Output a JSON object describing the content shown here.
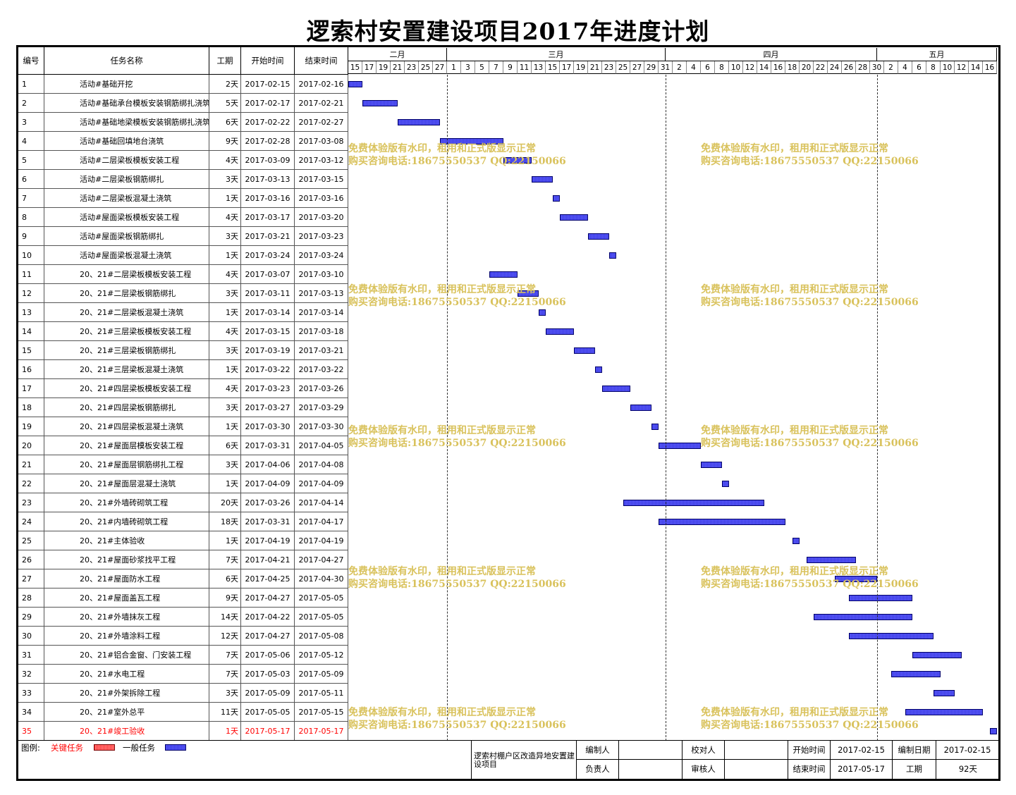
{
  "title": "逻索村安置建设项目2017年进度计划",
  "columns": {
    "id": "编号",
    "name": "任务名称",
    "duration": "工期",
    "start": "开始时间",
    "end": "结束时间"
  },
  "months": [
    {
      "label": "二月",
      "startDay": 0,
      "endDay": 14
    },
    {
      "label": "三月",
      "startDay": 14,
      "endDay": 45
    },
    {
      "label": "四月",
      "startDay": 45,
      "endDay": 75
    },
    {
      "label": "五月",
      "startDay": 75,
      "endDay": 92
    }
  ],
  "day_ticks": [
    "15",
    "17",
    "19",
    "21",
    "23",
    "25",
    "27",
    "1",
    "3",
    "5",
    "7",
    "9",
    "11",
    "13",
    "15",
    "17",
    "19",
    "21",
    "23",
    "25",
    "27",
    "29",
    "31",
    "2",
    "4",
    "6",
    "8",
    "10",
    "12",
    "14",
    "16",
    "18",
    "20",
    "22",
    "24",
    "26",
    "28",
    "30",
    "2",
    "4",
    "6",
    "8",
    "10",
    "12",
    "14",
    "16"
  ],
  "tasks": [
    {
      "id": "1",
      "name": "活动#基础开挖",
      "duration": "2天",
      "start": "2017-02-15",
      "end": "2017-02-16",
      "offset": 0,
      "days": 2,
      "critical": false
    },
    {
      "id": "2",
      "name": "活动#基础承台模板安装钢筋绑扎浇筑",
      "duration": "5天",
      "start": "2017-02-17",
      "end": "2017-02-21",
      "offset": 2,
      "days": 5,
      "critical": false
    },
    {
      "id": "3",
      "name": "活动#基础地梁模板安装钢筋绑扎浇筑",
      "duration": "6天",
      "start": "2017-02-22",
      "end": "2017-02-27",
      "offset": 7,
      "days": 6,
      "critical": false
    },
    {
      "id": "4",
      "name": "活动#基础回填地台浇筑",
      "duration": "9天",
      "start": "2017-02-28",
      "end": "2017-03-08",
      "offset": 13,
      "days": 9,
      "critical": false
    },
    {
      "id": "5",
      "name": "活动#二层梁板模板安装工程",
      "duration": "4天",
      "start": "2017-03-09",
      "end": "2017-03-12",
      "offset": 22,
      "days": 4,
      "critical": false
    },
    {
      "id": "6",
      "name": "活动#二层梁板钢筋绑扎",
      "duration": "3天",
      "start": "2017-03-13",
      "end": "2017-03-15",
      "offset": 26,
      "days": 3,
      "critical": false
    },
    {
      "id": "7",
      "name": "活动#二层梁板混凝土浇筑",
      "duration": "1天",
      "start": "2017-03-16",
      "end": "2017-03-16",
      "offset": 29,
      "days": 1,
      "critical": false
    },
    {
      "id": "8",
      "name": "活动#屋面梁板模板安装工程",
      "duration": "4天",
      "start": "2017-03-17",
      "end": "2017-03-20",
      "offset": 30,
      "days": 4,
      "critical": false
    },
    {
      "id": "9",
      "name": "活动#屋面梁板钢筋绑扎",
      "duration": "3天",
      "start": "2017-03-21",
      "end": "2017-03-23",
      "offset": 34,
      "days": 3,
      "critical": false
    },
    {
      "id": "10",
      "name": "活动#屋面梁板混凝土浇筑",
      "duration": "1天",
      "start": "2017-03-24",
      "end": "2017-03-24",
      "offset": 37,
      "days": 1,
      "critical": false
    },
    {
      "id": "11",
      "name": "20、21#二层梁板模板安装工程",
      "duration": "4天",
      "start": "2017-03-07",
      "end": "2017-03-10",
      "offset": 20,
      "days": 4,
      "critical": false
    },
    {
      "id": "12",
      "name": "20、21#二层梁板钢筋绑扎",
      "duration": "3天",
      "start": "2017-03-11",
      "end": "2017-03-13",
      "offset": 24,
      "days": 3,
      "critical": false
    },
    {
      "id": "13",
      "name": "20、21#二层梁板混凝土浇筑",
      "duration": "1天",
      "start": "2017-03-14",
      "end": "2017-03-14",
      "offset": 27,
      "days": 1,
      "critical": false
    },
    {
      "id": "14",
      "name": "20、21#三层梁板模板安装工程",
      "duration": "4天",
      "start": "2017-03-15",
      "end": "2017-03-18",
      "offset": 28,
      "days": 4,
      "critical": false
    },
    {
      "id": "15",
      "name": "20、21#三层梁板钢筋绑扎",
      "duration": "3天",
      "start": "2017-03-19",
      "end": "2017-03-21",
      "offset": 32,
      "days": 3,
      "critical": false
    },
    {
      "id": "16",
      "name": "20、21#三层梁板混凝土浇筑",
      "duration": "1天",
      "start": "2017-03-22",
      "end": "2017-03-22",
      "offset": 35,
      "days": 1,
      "critical": false
    },
    {
      "id": "17",
      "name": "20、21#四层梁板模板安装工程",
      "duration": "4天",
      "start": "2017-03-23",
      "end": "2017-03-26",
      "offset": 36,
      "days": 4,
      "critical": false
    },
    {
      "id": "18",
      "name": "20、21#四层梁板钢筋绑扎",
      "duration": "3天",
      "start": "2017-03-27",
      "end": "2017-03-29",
      "offset": 40,
      "days": 3,
      "critical": false
    },
    {
      "id": "19",
      "name": "20、21#四层梁板混凝土浇筑",
      "duration": "1天",
      "start": "2017-03-30",
      "end": "2017-03-30",
      "offset": 43,
      "days": 1,
      "critical": false
    },
    {
      "id": "20",
      "name": "20、21#屋面层模板安装工程",
      "duration": "6天",
      "start": "2017-03-31",
      "end": "2017-04-05",
      "offset": 44,
      "days": 6,
      "critical": false
    },
    {
      "id": "21",
      "name": "20、21#屋面层钢筋绑扎工程",
      "duration": "3天",
      "start": "2017-04-06",
      "end": "2017-04-08",
      "offset": 50,
      "days": 3,
      "critical": false
    },
    {
      "id": "22",
      "name": "20、21#屋面层混凝土浇筑",
      "duration": "1天",
      "start": "2017-04-09",
      "end": "2017-04-09",
      "offset": 53,
      "days": 1,
      "critical": false
    },
    {
      "id": "23",
      "name": "20、21#外墙砖砌筑工程",
      "duration": "20天",
      "start": "2017-03-26",
      "end": "2017-04-14",
      "offset": 39,
      "days": 20,
      "critical": false
    },
    {
      "id": "24",
      "name": "20、21#内墙砖砌筑工程",
      "duration": "18天",
      "start": "2017-03-31",
      "end": "2017-04-17",
      "offset": 44,
      "days": 18,
      "critical": false
    },
    {
      "id": "25",
      "name": "20、21#主体验收",
      "duration": "1天",
      "start": "2017-04-19",
      "end": "2017-04-19",
      "offset": 63,
      "days": 1,
      "critical": false
    },
    {
      "id": "26",
      "name": "20、21#屋面砂浆找平工程",
      "duration": "7天",
      "start": "2017-04-21",
      "end": "2017-04-27",
      "offset": 65,
      "days": 7,
      "critical": false
    },
    {
      "id": "27",
      "name": "20、21#屋面防水工程",
      "duration": "6天",
      "start": "2017-04-25",
      "end": "2017-04-30",
      "offset": 69,
      "days": 6,
      "critical": false
    },
    {
      "id": "28",
      "name": "20、21#屋面盖瓦工程",
      "duration": "9天",
      "start": "2017-04-27",
      "end": "2017-05-05",
      "offset": 71,
      "days": 9,
      "critical": false
    },
    {
      "id": "29",
      "name": "20、21#外墙抹灰工程",
      "duration": "14天",
      "start": "2017-04-22",
      "end": "2017-05-05",
      "offset": 66,
      "days": 14,
      "critical": false
    },
    {
      "id": "30",
      "name": "20、21#外墙涂料工程",
      "duration": "12天",
      "start": "2017-04-27",
      "end": "2017-05-08",
      "offset": 71,
      "days": 12,
      "critical": false
    },
    {
      "id": "31",
      "name": "20、21#铝合金窗、门安装工程",
      "duration": "7天",
      "start": "2017-05-06",
      "end": "2017-05-12",
      "offset": 80,
      "days": 7,
      "critical": false
    },
    {
      "id": "32",
      "name": "20、21#水电工程",
      "duration": "7天",
      "start": "2017-05-03",
      "end": "2017-05-09",
      "offset": 77,
      "days": 7,
      "critical": false
    },
    {
      "id": "33",
      "name": "20、21#外架拆除工程",
      "duration": "3天",
      "start": "2017-05-09",
      "end": "2017-05-11",
      "offset": 83,
      "days": 3,
      "critical": false
    },
    {
      "id": "34",
      "name": "20、21#室外总平",
      "duration": "11天",
      "start": "2017-05-05",
      "end": "2017-05-15",
      "offset": 79,
      "days": 11,
      "critical": false
    },
    {
      "id": "35",
      "name": "20、21#竣工验收",
      "duration": "1天",
      "start": "2017-05-17",
      "end": "2017-05-17",
      "offset": 91,
      "days": 1,
      "critical": true
    }
  ],
  "watermark": {
    "line1": "免费体验版有水印，租用和正式版显示正常",
    "line2": "购买咨询电话:18675550537 QQ:22150066"
  },
  "legend": {
    "label": "图例:",
    "critical": "关键任务",
    "normal": "一般任务",
    "critical_color": "#ff3b3b",
    "normal_color": "#3c3ce6"
  },
  "footer": {
    "project": "逻索村棚户区改造异地安置建设项目",
    "editor_label": "编制人",
    "editor": "",
    "checker_label": "校对人",
    "checker": "",
    "owner_label": "负责人",
    "owner": "",
    "reviewer_label": "审核人",
    "reviewer": "",
    "start_label": "开始时间",
    "start": "2017-02-15",
    "end_label": "结束时间",
    "end": "2017-05-17",
    "date_label": "编制日期",
    "date": "2017-02-15",
    "duration_label": "工期",
    "duration": "92天"
  }
}
